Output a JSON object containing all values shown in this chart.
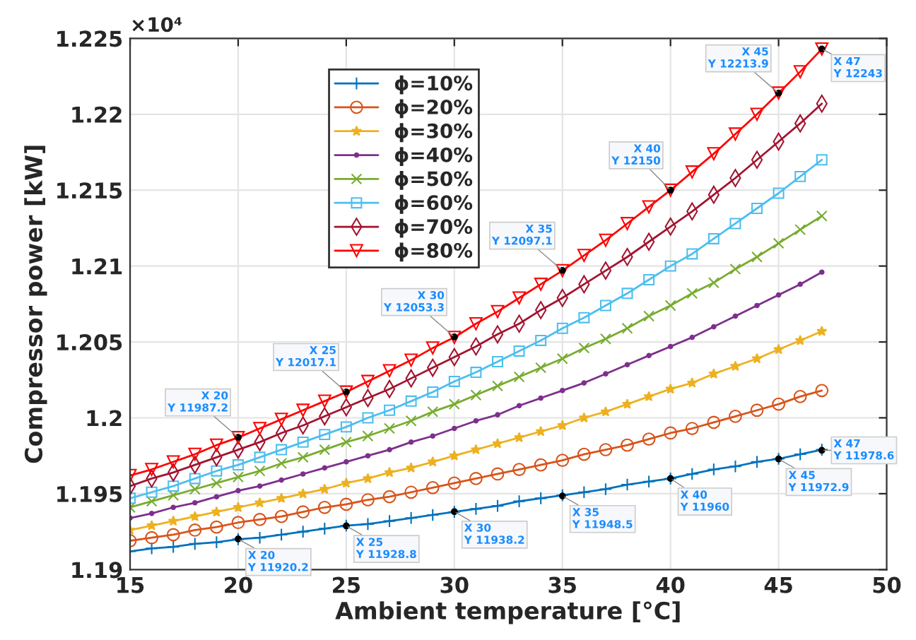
{
  "chart_data": {
    "type": "line",
    "xlabel": "Ambient temperature [°C]",
    "ylabel": "Compressor power [kW]",
    "x": [
      15,
      16,
      17,
      18,
      19,
      20,
      21,
      22,
      23,
      24,
      25,
      26,
      27,
      28,
      29,
      30,
      31,
      32,
      33,
      34,
      35,
      36,
      37,
      38,
      39,
      40,
      41,
      42,
      43,
      44,
      45,
      46,
      47
    ],
    "xlim": [
      15,
      50
    ],
    "xticks": [
      15,
      20,
      25,
      30,
      35,
      40,
      45,
      50
    ],
    "ylim": [
      1.19,
      1.225
    ],
    "yticks": [
      1.19,
      1.195,
      1.2,
      1.205,
      1.21,
      1.215,
      1.22,
      1.225
    ],
    "grid": true,
    "legend": "top left",
    "line_style": "solid",
    "series": [
      {
        "name": "ϕ=10%",
        "color": "#0072bd",
        "marker": "plus",
        "values": [
          1.1912,
          1.1914,
          1.1915,
          1.1917,
          1.1918,
          1.192,
          1.1921,
          1.1923,
          1.1925,
          1.1927,
          1.1929,
          1.193,
          1.1932,
          1.1934,
          1.1936,
          1.1938,
          1.194,
          1.1942,
          1.1945,
          1.1947,
          1.1949,
          1.1951,
          1.1953,
          1.1956,
          1.1958,
          1.196,
          1.1963,
          1.1966,
          1.1968,
          1.1971,
          1.1973,
          1.1976,
          1.1979
        ]
      },
      {
        "name": "ϕ=20%",
        "color": "#d95319",
        "marker": "circle",
        "values": [
          1.1919,
          1.1921,
          1.1923,
          1.1926,
          1.1928,
          1.1931,
          1.1933,
          1.1935,
          1.1938,
          1.1941,
          1.1943,
          1.1946,
          1.1948,
          1.1951,
          1.1954,
          1.1957,
          1.196,
          1.1963,
          1.1966,
          1.1969,
          1.1972,
          1.1976,
          1.1979,
          1.1982,
          1.1986,
          1.199,
          1.1993,
          1.1997,
          1.2001,
          1.2005,
          1.2009,
          1.2014,
          1.2018
        ]
      },
      {
        "name": "ϕ=30%",
        "color": "#edb120",
        "marker": "star",
        "values": [
          1.1926,
          1.1929,
          1.1932,
          1.1935,
          1.1938,
          1.1941,
          1.1944,
          1.1947,
          1.195,
          1.1953,
          1.1957,
          1.196,
          1.1964,
          1.1967,
          1.1971,
          1.1975,
          1.1979,
          1.1983,
          1.1987,
          1.1991,
          1.1995,
          1.2,
          1.2004,
          1.2009,
          1.2014,
          1.2019,
          1.2023,
          1.2029,
          1.2034,
          1.2039,
          1.2045,
          1.2051,
          1.2057
        ]
      },
      {
        "name": "ϕ=40%",
        "color": "#7e2f8e",
        "marker": "point",
        "values": [
          1.1934,
          1.1937,
          1.1941,
          1.1944,
          1.1948,
          1.1952,
          1.1955,
          1.1959,
          1.1963,
          1.1967,
          1.1971,
          1.1975,
          1.1979,
          1.1984,
          1.1988,
          1.1993,
          1.1998,
          1.2002,
          1.2008,
          1.2013,
          1.2018,
          1.2023,
          1.2029,
          1.2035,
          1.2041,
          1.2047,
          1.2053,
          1.206,
          1.2067,
          1.2074,
          1.2081,
          1.2088,
          1.2096
        ]
      },
      {
        "name": "ϕ=50%",
        "color": "#77ac30",
        "marker": "cross",
        "values": [
          1.1941,
          1.1945,
          1.1949,
          1.1953,
          1.1957,
          1.1961,
          1.1965,
          1.197,
          1.1974,
          1.1979,
          1.1984,
          1.1988,
          1.1993,
          1.1998,
          1.2004,
          1.2009,
          1.2015,
          1.2021,
          1.2027,
          1.2033,
          1.2039,
          1.2046,
          1.2052,
          1.2059,
          1.2067,
          1.2074,
          1.2082,
          1.2089,
          1.2098,
          1.2106,
          1.2115,
          1.2124,
          1.2133
        ]
      },
      {
        "name": "ϕ=60%",
        "color": "#4dbeee",
        "marker": "square",
        "values": [
          1.1947,
          1.1951,
          1.1955,
          1.196,
          1.1965,
          1.1969,
          1.1974,
          1.1979,
          1.1984,
          1.1989,
          1.1994,
          1.2,
          1.2005,
          1.2011,
          1.2017,
          1.2024,
          1.203,
          1.2037,
          1.2044,
          1.2051,
          1.2059,
          1.2066,
          1.2074,
          1.2082,
          1.2091,
          1.21,
          1.2108,
          1.2118,
          1.2128,
          1.2138,
          1.2148,
          1.2159,
          1.217
        ]
      },
      {
        "name": "ϕ=70%",
        "color": "#a2142f",
        "marker": "diamond",
        "values": [
          1.1955,
          1.196,
          1.1964,
          1.1969,
          1.1974,
          1.1979,
          1.1984,
          1.199,
          1.1995,
          1.2001,
          1.2007,
          1.2013,
          1.2019,
          1.2026,
          1.2033,
          1.204,
          1.2047,
          1.2055,
          1.2062,
          1.2071,
          1.2079,
          1.2088,
          1.2097,
          1.2106,
          1.2116,
          1.2126,
          1.2136,
          1.2147,
          1.2158,
          1.217,
          1.2182,
          1.2194,
          1.2207
        ]
      },
      {
        "name": "ϕ=80%",
        "color": "#ff0000",
        "marker": "triangle",
        "values": [
          1.1962,
          1.1966,
          1.1971,
          1.1976,
          1.1982,
          1.1987,
          1.1993,
          1.1999,
          1.2005,
          1.2011,
          1.2017,
          1.2024,
          1.2031,
          1.2038,
          1.2046,
          1.2053,
          1.2062,
          1.207,
          1.2079,
          1.2088,
          1.2097,
          1.2107,
          1.2117,
          1.2128,
          1.2139,
          1.215,
          1.2162,
          1.2174,
          1.2187,
          1.22,
          1.2214,
          1.2228,
          1.2243
        ]
      }
    ],
    "annotations": [
      "×10⁴",
      {
        "text": "X 20\nY 11987.2",
        "x": 20,
        "y": 1.19872
      },
      {
        "text": "X 25\nY 12017.1",
        "x": 25,
        "y": 1.20171
      },
      {
        "text": "X 30\nY 12053.3",
        "x": 30,
        "y": 1.20533
      },
      {
        "text": "X 35\nY 12097.1",
        "x": 35,
        "y": 1.20971
      },
      {
        "text": "X 40\nY 12150",
        "x": 40,
        "y": 1.215
      },
      {
        "text": "X 45\nY 12213.9",
        "x": 45,
        "y": 1.22139
      },
      {
        "text": "X 47\nY 12243",
        "x": 47,
        "y": 1.2243
      },
      {
        "text": "X 20\nY 11920.2",
        "x": 20,
        "y": 1.19202
      },
      {
        "text": "X 25\nY 11928.8",
        "x": 25,
        "y": 1.19288
      },
      {
        "text": "X 30\nY 11938.2",
        "x": 30,
        "y": 1.19382
      },
      {
        "text": "X 35\nY 11948.5",
        "x": 35,
        "y": 1.19485
      },
      {
        "text": "X 40\nY 11960",
        "x": 40,
        "y": 1.196
      },
      {
        "text": "X 45\nY 11972.9",
        "x": 45,
        "y": 1.19729
      },
      {
        "text": "X 47\nY 11978.6",
        "x": 47,
        "y": 1.19786
      }
    ]
  }
}
